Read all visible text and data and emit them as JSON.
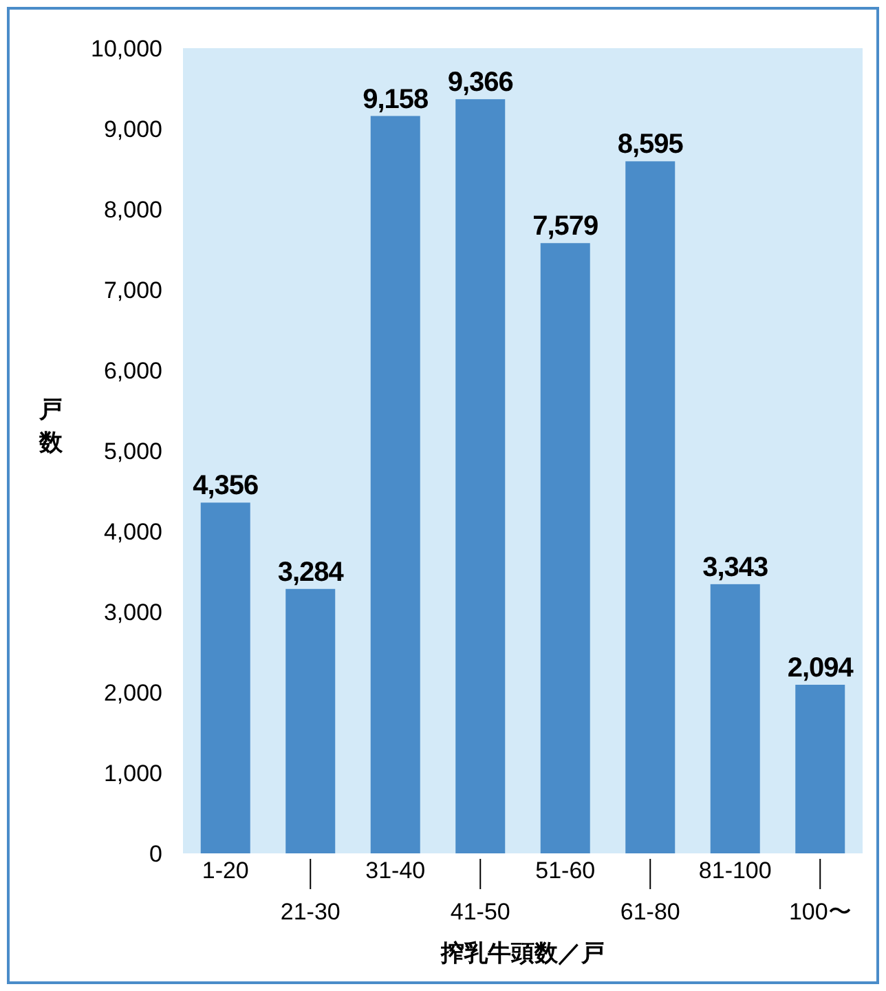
{
  "chart_data": {
    "type": "bar",
    "xlabel": "搾乳牛頭数／戸",
    "ylabel": "戸数",
    "categories": [
      "1-20",
      "21-30",
      "31-40",
      "41-50",
      "51-60",
      "61-80",
      "81-100",
      "100〜"
    ],
    "values": [
      4356,
      3284,
      9158,
      9366,
      7579,
      8595,
      3343,
      2094
    ],
    "value_labels": [
      "4,356",
      "3,284",
      "9,158",
      "9,366",
      "7,579",
      "8,595",
      "3,343",
      "2,094"
    ],
    "color": "#4a8cc9",
    "ylim": [
      0,
      10000
    ],
    "yticks": [
      0,
      {
        "value": 1000,
        "label": "1,000"
      },
      {
        "value": 2000,
        "label": "2,000"
      },
      {
        "value": 3000,
        "label": "3,000"
      },
      {
        "value": 4000,
        "label": "4,000"
      },
      {
        "value": 5000,
        "label": "5,000"
      },
      {
        "value": 6000,
        "label": "6,000"
      },
      {
        "value": 7000,
        "label": "7,000"
      },
      {
        "value": 8000,
        "label": "8,000"
      },
      {
        "value": 9000,
        "label": "9,000"
      },
      {
        "value": 10000,
        "label": "10,000"
      }
    ]
  }
}
